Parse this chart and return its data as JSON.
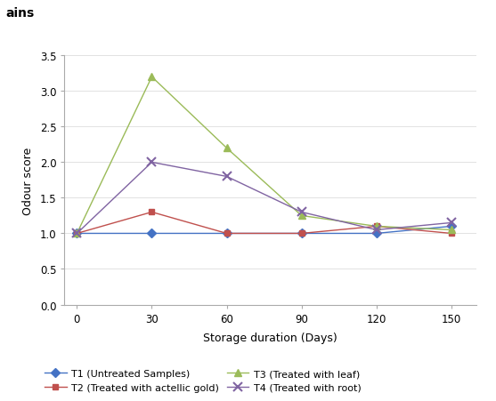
{
  "x": [
    0,
    30,
    60,
    90,
    120,
    150
  ],
  "T1": [
    1.0,
    1.0,
    1.0,
    1.0,
    1.0,
    1.1
  ],
  "T2": [
    1.0,
    1.3,
    1.0,
    1.0,
    1.1,
    1.0
  ],
  "T3": [
    1.0,
    3.2,
    2.2,
    1.25,
    1.1,
    1.05
  ],
  "T4": [
    1.0,
    2.0,
    1.8,
    1.3,
    1.05,
    1.15
  ],
  "T1_color": "#4472C4",
  "T2_color": "#C0504D",
  "T3_color": "#9BBB59",
  "T4_color": "#8064A2",
  "T1_marker": "D",
  "T2_marker": "s",
  "T3_marker": "^",
  "T4_marker": "x",
  "T1_label": "T1 (Untreated Samples)",
  "T2_label": "T2 (Treated with actellic gold)",
  "T3_label": "T3 (Treated with leaf)",
  "T4_label": "T4 (Treated with root)",
  "xlabel": "Storage duration (Days)",
  "ylabel": "Odour score",
  "ylim": [
    0,
    3.5
  ],
  "yticks": [
    0,
    0.5,
    1.0,
    1.5,
    2.0,
    2.5,
    3.0,
    3.5
  ],
  "background_color": "#ffffff",
  "header_bg": "#a0a0a0",
  "header_text": "ains",
  "header_fontsize": 10
}
